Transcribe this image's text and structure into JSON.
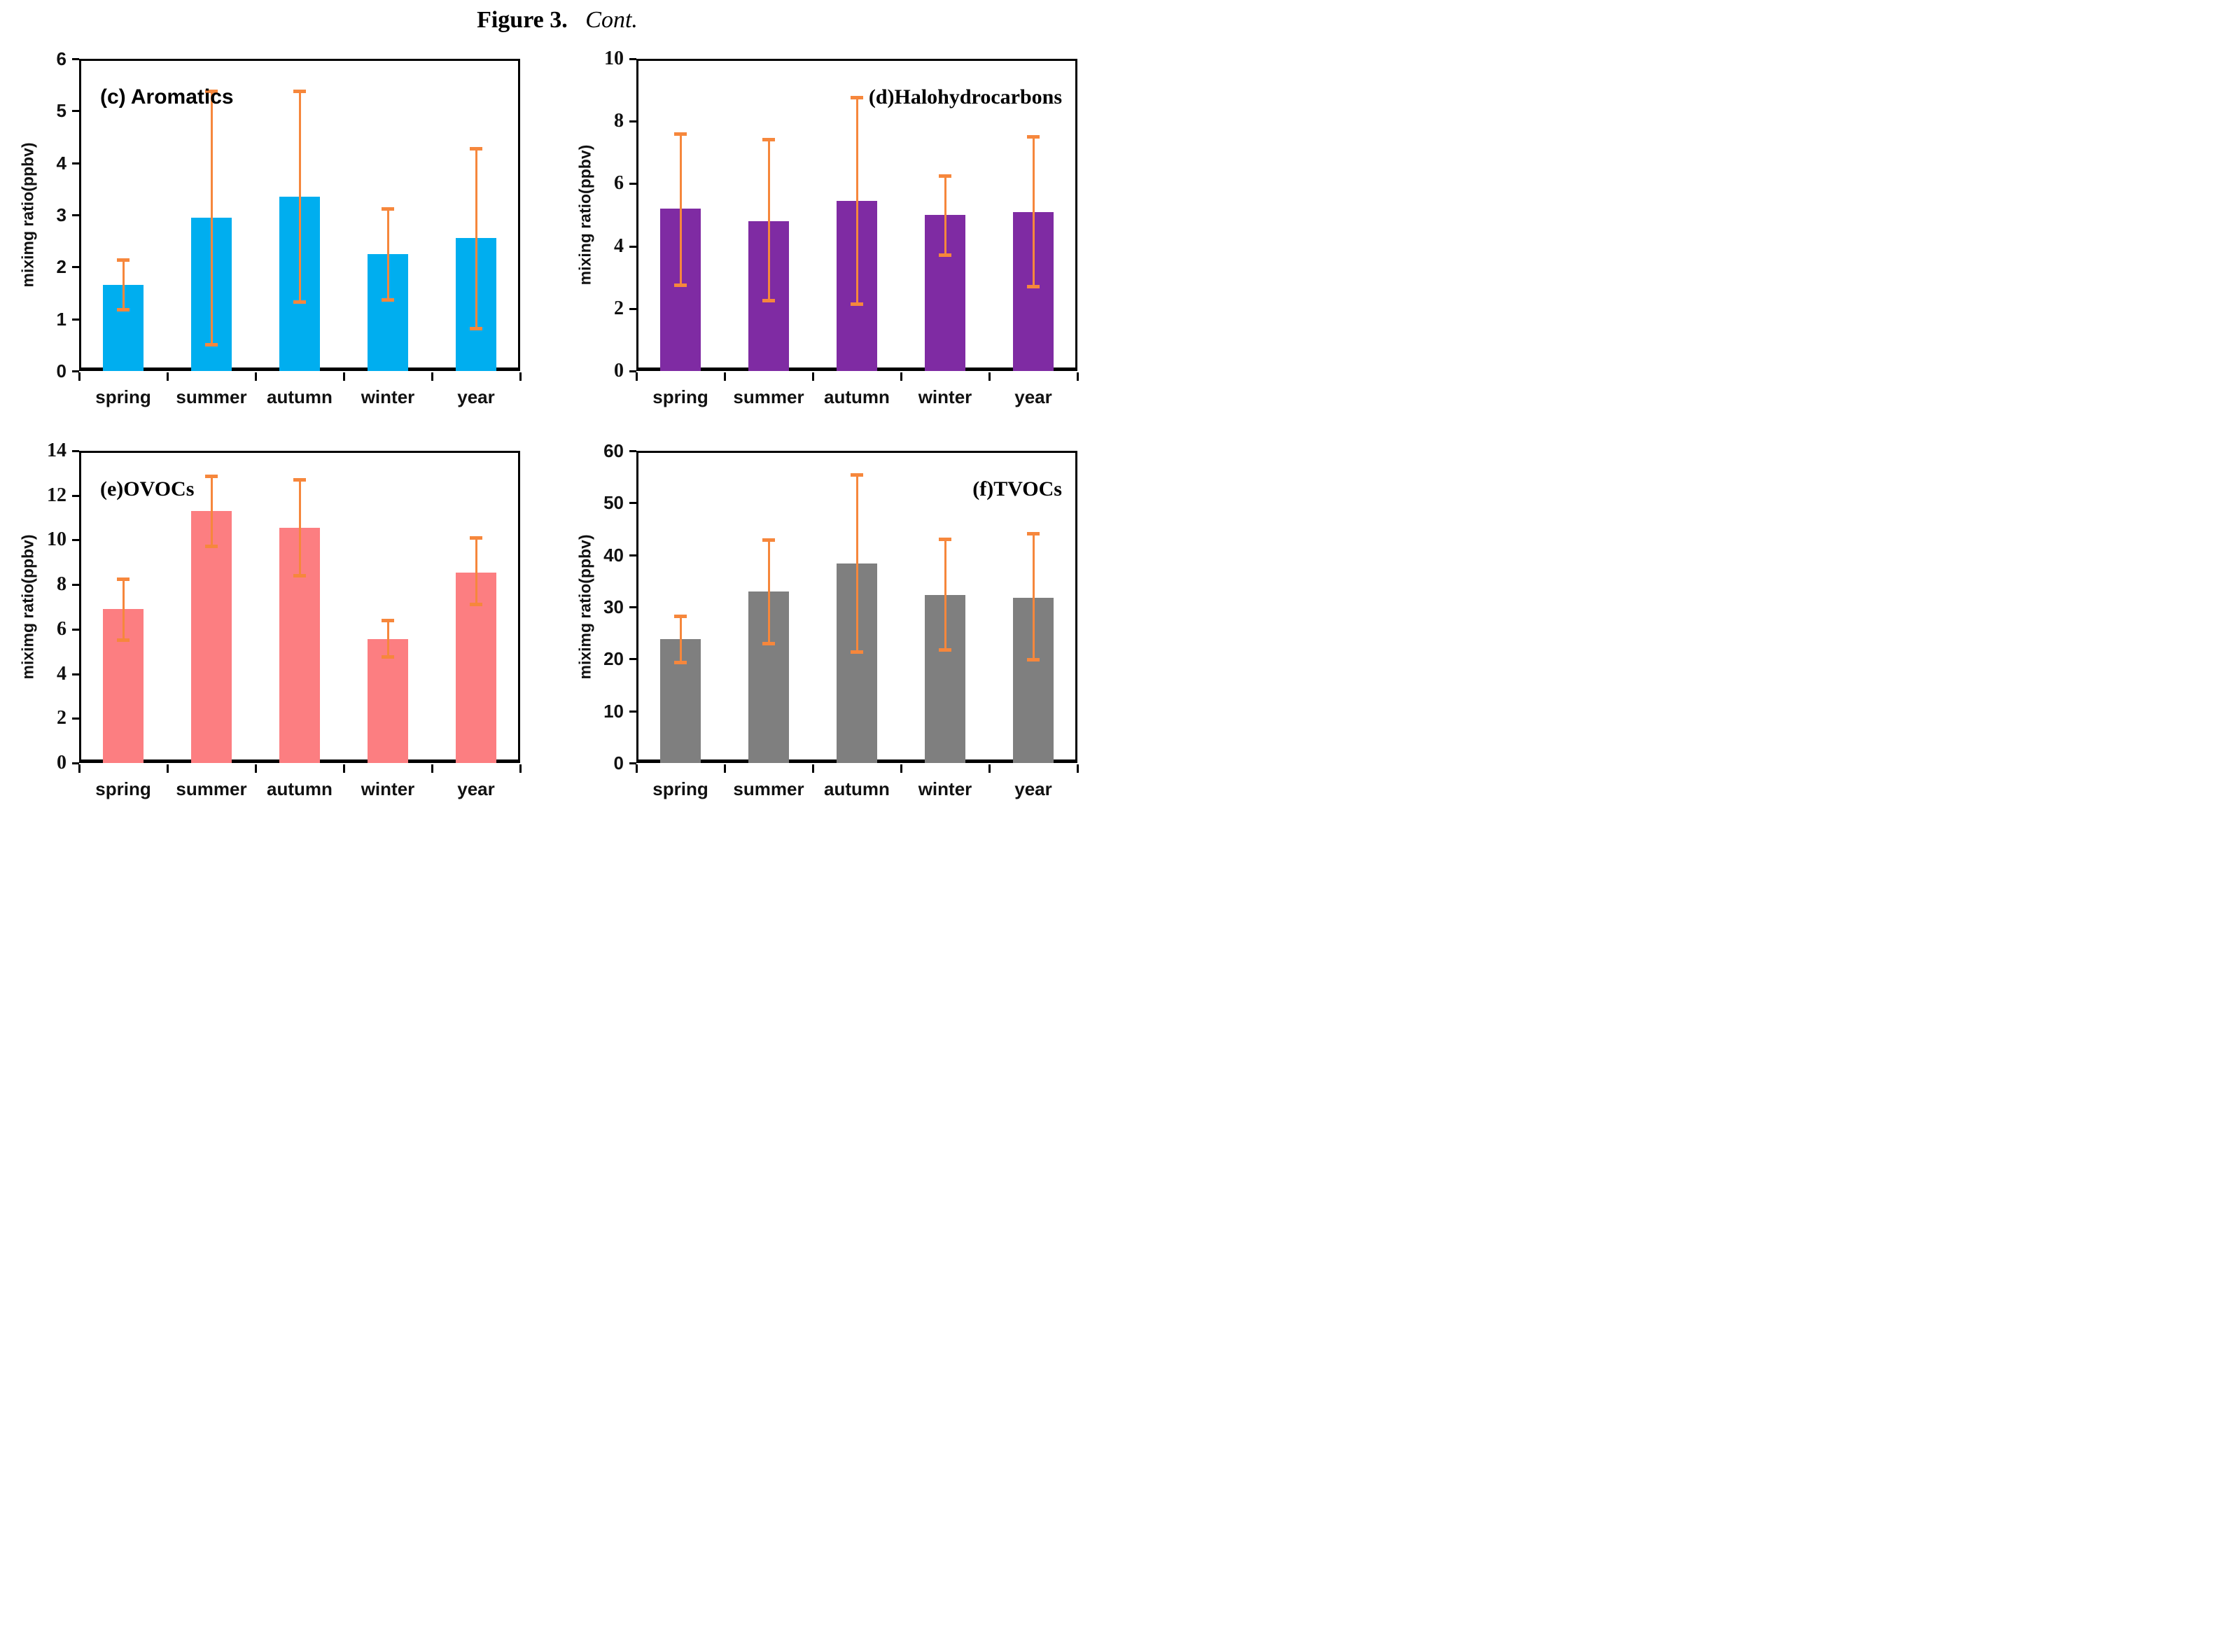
{
  "figure_title": {
    "bold_part": "Figure 3.",
    "italic_part": "Cont."
  },
  "categories": [
    "spring",
    "summer",
    "autumn",
    "winter",
    "year"
  ],
  "colors": {
    "error_bar": "#F6873C",
    "axis": "#000000",
    "aromatics_bar": "#00AEEF",
    "halohydrocarbons_bar": "#7F2BA3",
    "ovocs_bar": "#FC7E81",
    "tvocs_bar": "#7F7F7F"
  },
  "chart_data": [
    {
      "id": "c",
      "type": "bar",
      "title": "(c) Aromatics",
      "title_side": "left",
      "title_font": "sans",
      "tick_font": "sans",
      "ylabel": "miximg ratio(ppbv)",
      "ylim": [
        0,
        6
      ],
      "yticks": [
        0,
        1,
        2,
        3,
        4,
        5,
        6
      ],
      "grid": false,
      "bar_color": "#00AEEF",
      "values": [
        1.65,
        2.95,
        3.35,
        2.25,
        2.55
      ],
      "err_low": [
        1.18,
        0.5,
        1.32,
        1.36,
        0.82
      ],
      "err_high": [
        2.13,
        5.38,
        5.38,
        3.12,
        4.27
      ]
    },
    {
      "id": "d",
      "type": "bar",
      "title": "(d)Halohydrocarbons",
      "title_side": "right",
      "title_font": "serif",
      "tick_font": "serif",
      "ylabel": "mixing ratio(ppbv)",
      "ylim": [
        0,
        10
      ],
      "yticks": [
        0,
        2,
        4,
        6,
        8,
        10
      ],
      "grid": false,
      "bar_color": "#7F2BA3",
      "values": [
        5.2,
        4.8,
        5.45,
        5.0,
        5.1
      ],
      "err_low": [
        2.75,
        2.25,
        2.15,
        3.7,
        2.7
      ],
      "err_high": [
        7.6,
        7.4,
        8.75,
        6.25,
        7.5
      ]
    },
    {
      "id": "e",
      "type": "bar",
      "title": "(e)OVOCs",
      "title_side": "left",
      "title_font": "serif",
      "tick_font": "serif",
      "ylabel": "miximg ratio(ppbv)",
      "ylim": [
        0,
        14
      ],
      "yticks": [
        0,
        2,
        4,
        6,
        8,
        10,
        12,
        14
      ],
      "grid": false,
      "bar_color": "#FC7E81",
      "values": [
        6.9,
        11.3,
        10.55,
        5.55,
        8.55
      ],
      "err_low": [
        5.5,
        9.7,
        8.4,
        4.75,
        7.1
      ],
      "err_high": [
        8.25,
        12.85,
        12.7,
        6.4,
        10.1
      ]
    },
    {
      "id": "f",
      "type": "bar",
      "title": "(f)TVOCs",
      "title_side": "right",
      "title_font": "serif",
      "tick_font": "sans",
      "ylabel": "miximg ratio(ppbv)",
      "ylim": [
        0,
        60
      ],
      "yticks": [
        0,
        10,
        20,
        30,
        40,
        50,
        60
      ],
      "grid": false,
      "bar_color": "#7F7F7F",
      "values": [
        23.8,
        33.0,
        38.3,
        32.3,
        31.8
      ],
      "err_low": [
        19.3,
        23.0,
        21.3,
        21.7,
        19.8
      ],
      "err_high": [
        28.2,
        42.8,
        55.3,
        43.0,
        44.0
      ]
    }
  ]
}
